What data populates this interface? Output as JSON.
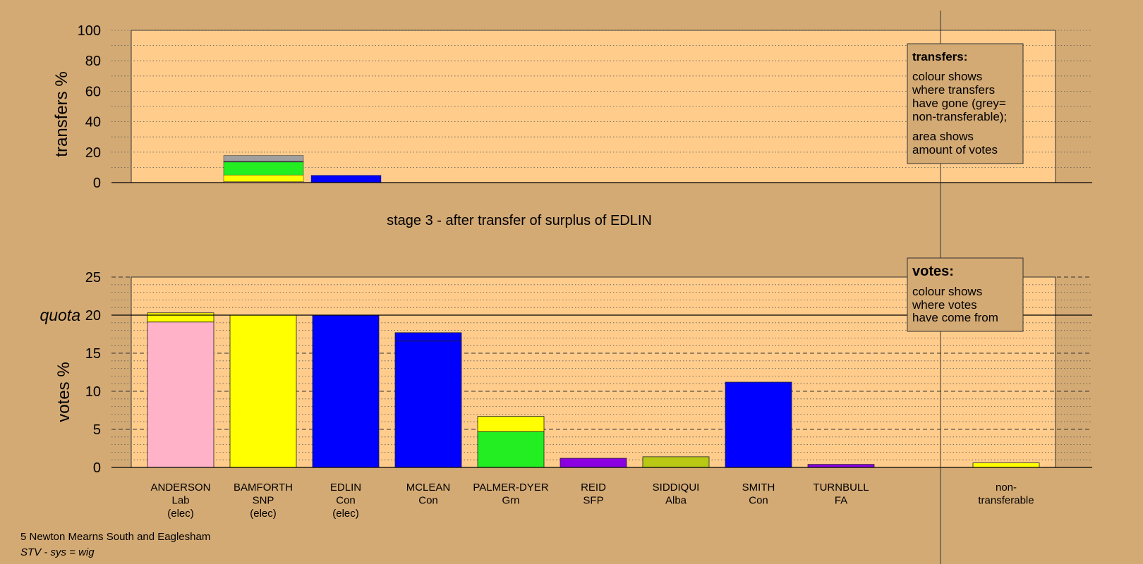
{
  "colors": {
    "page_bg": "#d4aa74",
    "plot_bg": "#ffcc8c",
    "Lab": "#ffb2c8",
    "SNP": "#ffff00",
    "Con": "#0000ff",
    "Grn": "#22ee22",
    "SFP": "#8a00e0",
    "Alba": "#b8c814",
    "FA": "#8a00e0",
    "nontransferable": "#a0a0a0"
  },
  "chart_data": [
    {
      "type": "bar",
      "stacked": true,
      "ylabel": "transfers %",
      "ylim": [
        0,
        100
      ],
      "yticks": [
        0,
        20,
        40,
        60,
        80,
        100
      ],
      "grid": true,
      "caption": "stage 3 - after transfer of surplus of EDLIN",
      "bars": [
        {
          "source": "EDLIN",
          "segments": [
            {
              "party": "Lab",
              "value": 0.6
            },
            {
              "party": "SNP",
              "value": 4.4
            },
            {
              "party": "Grn",
              "value": 8.5
            },
            {
              "party": "SFP",
              "value": 0.3
            },
            {
              "party": "Alba",
              "value": 0.2
            },
            {
              "party": "nontransferable",
              "value": 3.8
            }
          ]
        },
        {
          "source": "Con",
          "segments": [
            {
              "party": "Con",
              "value": 4.8
            }
          ]
        }
      ]
    },
    {
      "type": "bar",
      "stacked": true,
      "ylabel": "votes %",
      "ylim": [
        0,
        25
      ],
      "yticks": [
        0,
        5,
        10,
        15,
        20,
        25
      ],
      "quota": 20,
      "quota_label": "quota",
      "grid": true,
      "categories": [
        {
          "name": "ANDERSON",
          "party": "Lab",
          "status": "(elec)",
          "segments": [
            {
              "party": "Lab",
              "value": 19.1
            },
            {
              "party": "SNP",
              "value": 1.2
            }
          ]
        },
        {
          "name": "BAMFORTH",
          "party": "SNP",
          "status": "(elec)",
          "segments": [
            {
              "party": "SNP",
              "value": 20.0
            }
          ]
        },
        {
          "name": "EDLIN",
          "party": "Con",
          "status": "(elec)",
          "segments": [
            {
              "party": "Con",
              "value": 20.0
            }
          ]
        },
        {
          "name": "MCLEAN",
          "party": "Con",
          "status": "",
          "segments": [
            {
              "party": "Con",
              "value": 16.6
            },
            {
              "party": "Con",
              "value": 1.1
            }
          ]
        },
        {
          "name": "PALMER-DYER",
          "party": "Grn",
          "status": "",
          "segments": [
            {
              "party": "Grn",
              "value": 4.7
            },
            {
              "party": "SNP",
              "value": 2.0
            }
          ]
        },
        {
          "name": "REID",
          "party": "SFP",
          "status": "",
          "segments": [
            {
              "party": "SFP",
              "value": 1.2
            }
          ]
        },
        {
          "name": "SIDDIQUI",
          "party": "Alba",
          "status": "",
          "segments": [
            {
              "party": "Alba",
              "value": 1.4
            }
          ]
        },
        {
          "name": "SMITH",
          "party": "Con",
          "status": "",
          "segments": [
            {
              "party": "Con",
              "value": 11.2
            }
          ]
        },
        {
          "name": "TURNBULL",
          "party": "FA",
          "status": "",
          "segments": [
            {
              "party": "FA",
              "value": 0.4
            }
          ]
        }
      ],
      "nontransferable": {
        "label_line1": "non-",
        "label_line2": "transferable",
        "segments": [
          {
            "party": "SNP",
            "value": 0.6
          }
        ]
      }
    }
  ],
  "legends": {
    "transfers": {
      "title": "transfers:",
      "para1": [
        "colour shows",
        "where transfers",
        "have gone (grey=",
        "non-transferable);"
      ],
      "para2": [
        "area shows",
        "amount of votes"
      ]
    },
    "votes": {
      "title": "votes:",
      "para1": [
        "colour shows",
        "where votes",
        "have come from"
      ]
    }
  },
  "footer": {
    "ward": "5 Newton Mearns South and Eaglesham",
    "system": "STV - sys = wig"
  }
}
